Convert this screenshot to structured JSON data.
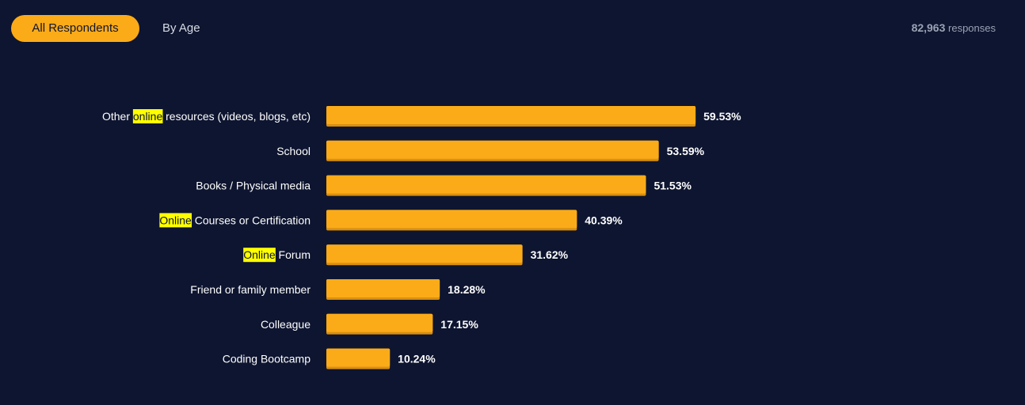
{
  "tabs": {
    "all_respondents": "All Respondents",
    "by_age": "By Age"
  },
  "responses": {
    "count": "82,963",
    "label": "responses"
  },
  "colors": {
    "background": "#0e1530",
    "bar": "#fbab18",
    "bar_shadow": "#d98f10",
    "highlight": "#ffff00",
    "text": "#ffffff"
  },
  "highlight_term": "online",
  "chart_data": {
    "type": "bar",
    "orientation": "horizontal",
    "categories": [
      "Other online resources (videos, blogs, etc)",
      "School",
      "Books / Physical media",
      "Online Courses or Certification",
      "Online Forum",
      "Friend or family member",
      "Colleague",
      "Coding Bootcamp"
    ],
    "values": [
      59.53,
      53.59,
      51.53,
      40.39,
      31.62,
      18.28,
      17.15,
      10.24
    ],
    "value_labels": [
      "59.53%",
      "53.59%",
      "51.53%",
      "40.39%",
      "31.62%",
      "18.28%",
      "17.15%",
      "10.24%"
    ],
    "xlim": [
      0,
      100
    ],
    "grid": false,
    "legend": "none"
  }
}
